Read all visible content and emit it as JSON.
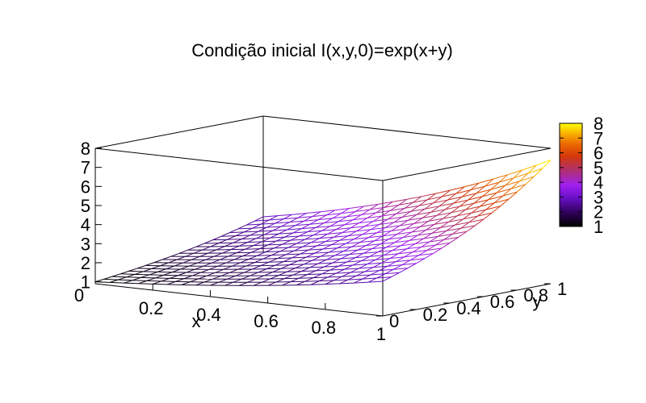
{
  "chart_data": {
    "type": "surface",
    "title": "Condição inicial I(x,y,0)=exp(x+y)",
    "xlabel": "x",
    "ylabel": "y",
    "zlabel": "",
    "xlim": [
      0,
      1
    ],
    "ylim": [
      0,
      1
    ],
    "zlim": [
      0,
      8
    ],
    "x_ticks": [
      "0",
      "0.2",
      "0.4",
      "0.6",
      "0.8",
      "1"
    ],
    "y_ticks": [
      "0",
      "0.2",
      "0.4",
      "0.6",
      "0.8",
      "1"
    ],
    "z_ticks": [
      "1",
      "2",
      "3",
      "4",
      "5",
      "6",
      "7",
      "8"
    ],
    "colorbar_ticks": [
      "1",
      "2",
      "3",
      "4",
      "5",
      "6",
      "7",
      "8"
    ],
    "colorbar_range": [
      1,
      7.389
    ],
    "function": "exp(x+y)",
    "grid_n": 20,
    "palette": [
      "#000000",
      "#2a0050",
      "#6a10c8",
      "#a020f0",
      "#b0306a",
      "#d4380a",
      "#ec6a00",
      "#f8b000",
      "#ffff00"
    ]
  }
}
